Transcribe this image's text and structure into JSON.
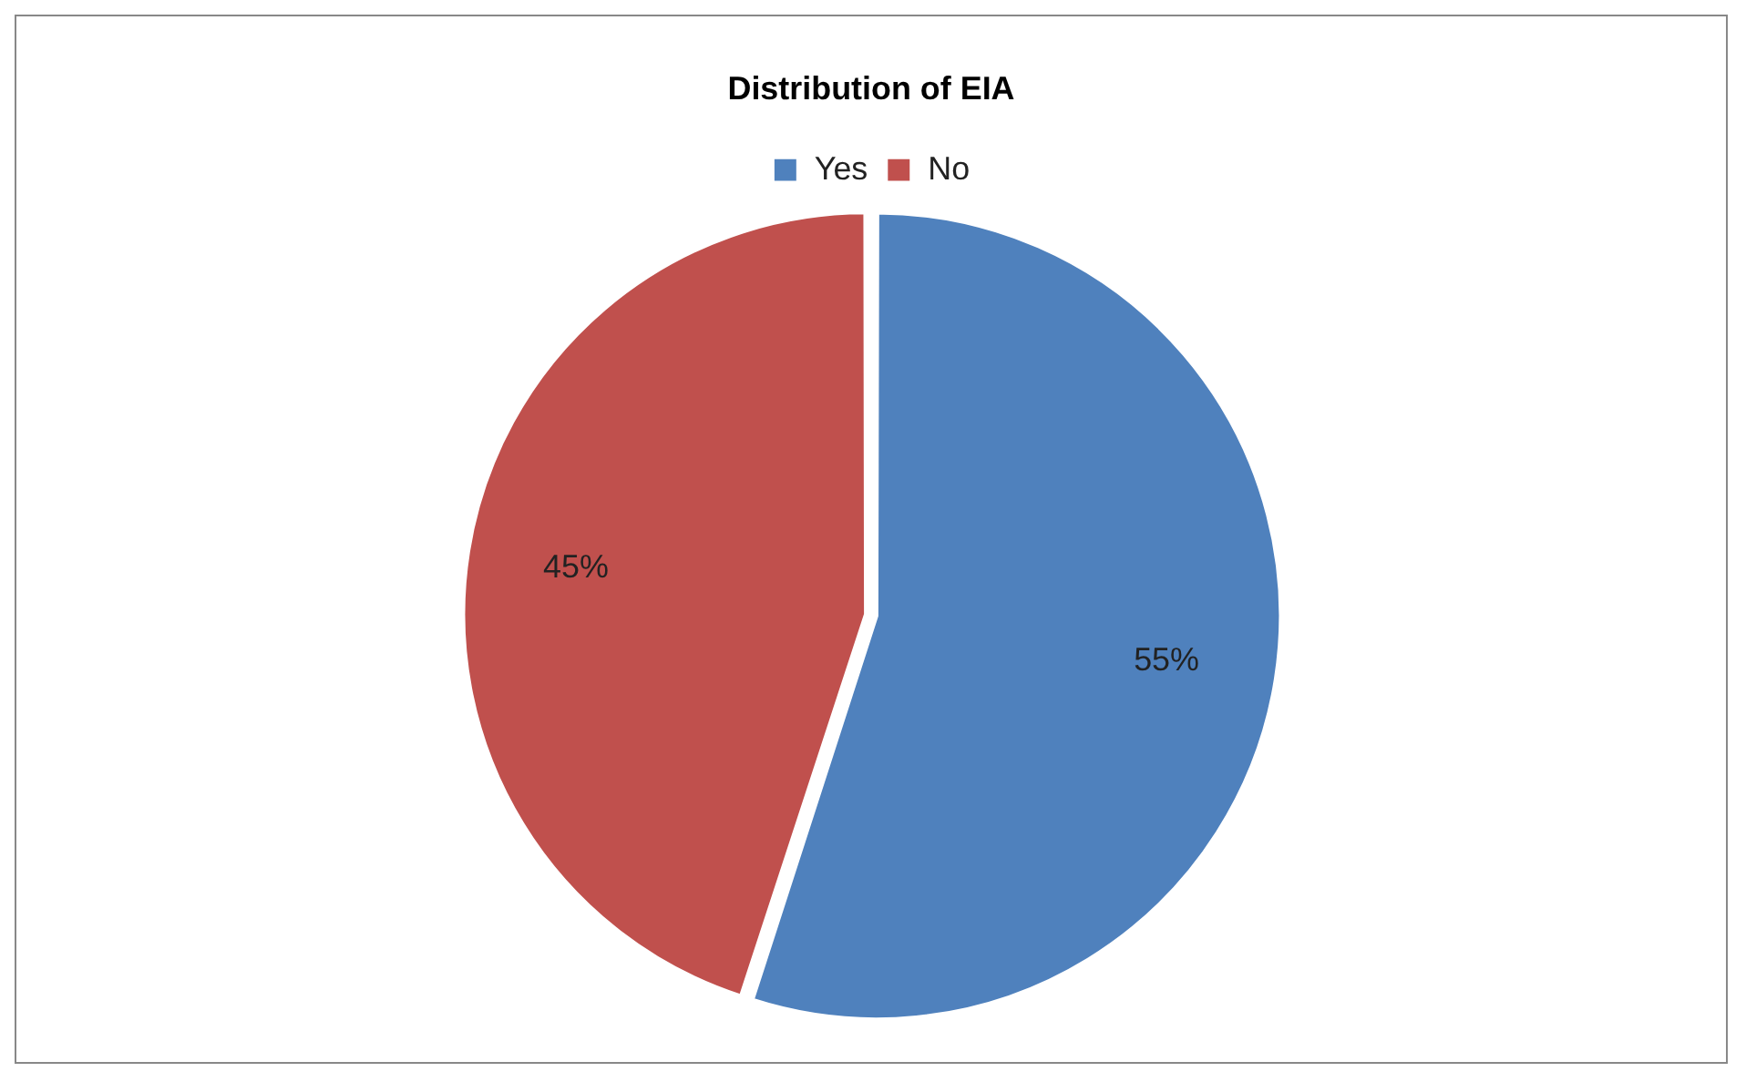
{
  "chart_data": {
    "type": "pie",
    "title": "Distribution of EIA",
    "categories": [
      "Yes",
      "No"
    ],
    "values": [
      55,
      45
    ],
    "colors": [
      "#4f81bd",
      "#c0504d"
    ],
    "value_labels": [
      "55%",
      "45%"
    ],
    "legend": "top"
  }
}
